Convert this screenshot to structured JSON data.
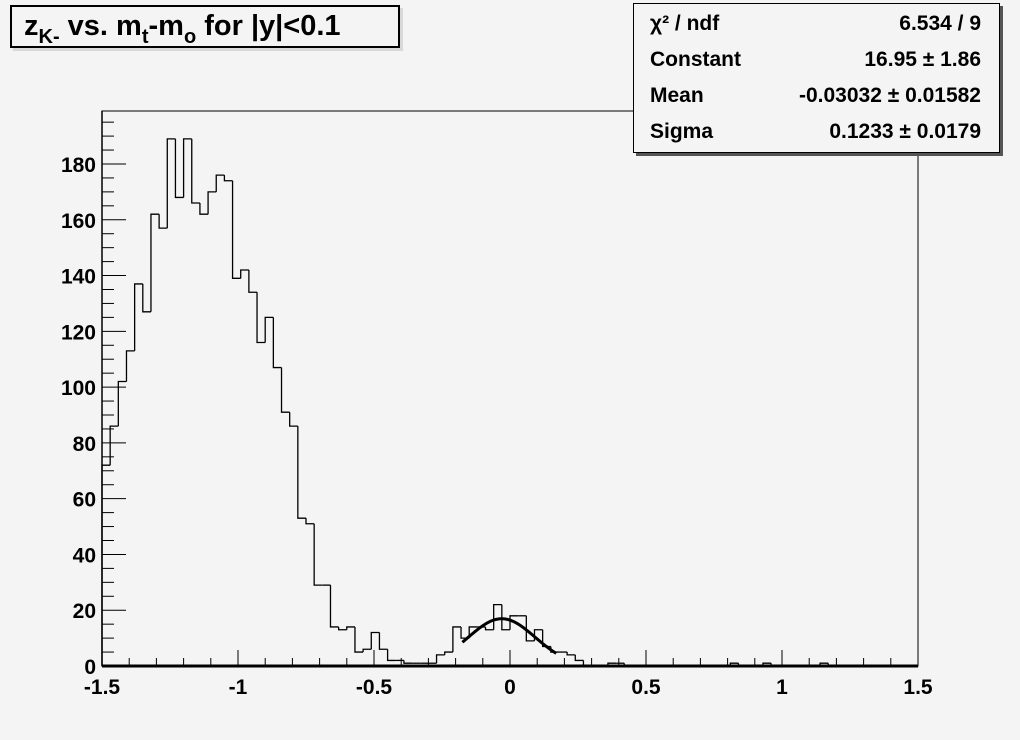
{
  "title": {
    "main_prefix": "z",
    "sub_k": "K-",
    "vs": " vs. m",
    "sub_t": "t",
    "dash": "-m",
    "sub_o": "o",
    "suffix": " for |y|<0.1"
  },
  "stats": {
    "rows": [
      {
        "label": "χ² / ndf",
        "value": "6.534 / 9"
      },
      {
        "label": "Constant",
        "value": "16.95 ± 1.86"
      },
      {
        "label": "Mean",
        "value": "-0.03032 ± 0.01582"
      },
      {
        "label": "Sigma",
        "value": "0.1233 ± 0.0179"
      }
    ]
  },
  "chart_data": {
    "type": "histogram",
    "title": "z_K- vs. m_t-m_o for |y|<0.1",
    "xlim": [
      -1.5,
      1.5
    ],
    "ylim": [
      0,
      199
    ],
    "bin_width": 0.03,
    "x_ticks": [
      "-1.5",
      "-1",
      "-0.5",
      "0",
      "0.5",
      "1",
      "1.5"
    ],
    "x_tick_values": [
      -1.5,
      -1,
      -0.5,
      0,
      0.5,
      1,
      1.5
    ],
    "y_ticks": [
      "0",
      "20",
      "40",
      "60",
      "80",
      "100",
      "120",
      "140",
      "160",
      "180"
    ],
    "y_tick_values": [
      0,
      20,
      40,
      60,
      80,
      100,
      120,
      140,
      160,
      180
    ],
    "grid": false,
    "values": [
      72,
      86,
      102,
      113,
      137,
      127,
      162,
      157,
      189,
      168,
      189,
      166,
      162,
      170,
      176,
      174,
      139,
      142,
      134,
      116,
      125,
      107,
      91,
      86,
      53,
      51,
      29,
      29,
      14,
      13,
      14,
      5,
      6,
      12,
      6,
      2,
      2,
      1,
      1,
      1,
      1,
      4,
      5,
      14,
      10,
      14,
      14,
      13,
      22,
      13,
      18,
      18,
      9,
      13,
      7,
      5,
      5,
      4,
      2,
      0,
      0,
      0,
      1,
      1,
      0,
      0,
      0,
      0,
      0,
      0,
      0,
      0,
      0,
      0,
      0,
      0,
      0,
      1,
      0,
      0,
      0,
      1,
      0,
      0,
      0,
      0,
      0,
      0,
      1,
      0,
      0,
      0,
      0,
      0,
      0,
      0,
      0,
      0,
      0,
      0
    ],
    "fit": {
      "function": "gaus",
      "constant": 16.95,
      "mean": -0.03032,
      "sigma": 0.1233,
      "range": [
        -0.175,
        0.17
      ]
    },
    "colors": {
      "background": "#f4f4f4",
      "line": "#000000"
    }
  }
}
